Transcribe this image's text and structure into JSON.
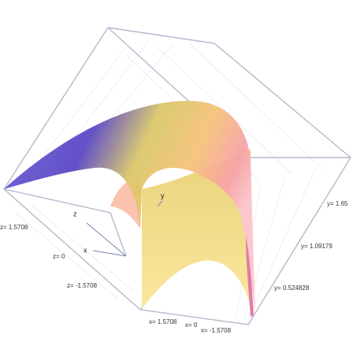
{
  "plot": {
    "axis_names": {
      "x": "x",
      "y": "y",
      "z": "z"
    },
    "z_ticks": [
      "z= 1.5708",
      "z= 0",
      "z= -1.5708"
    ],
    "x_ticks": [
      "x= 1.5708",
      "x= 0",
      "x= -1.5708"
    ],
    "y_ticks": [
      "y= 1.65",
      "y= 1.09179",
      "y= 0.524828"
    ]
  }
}
